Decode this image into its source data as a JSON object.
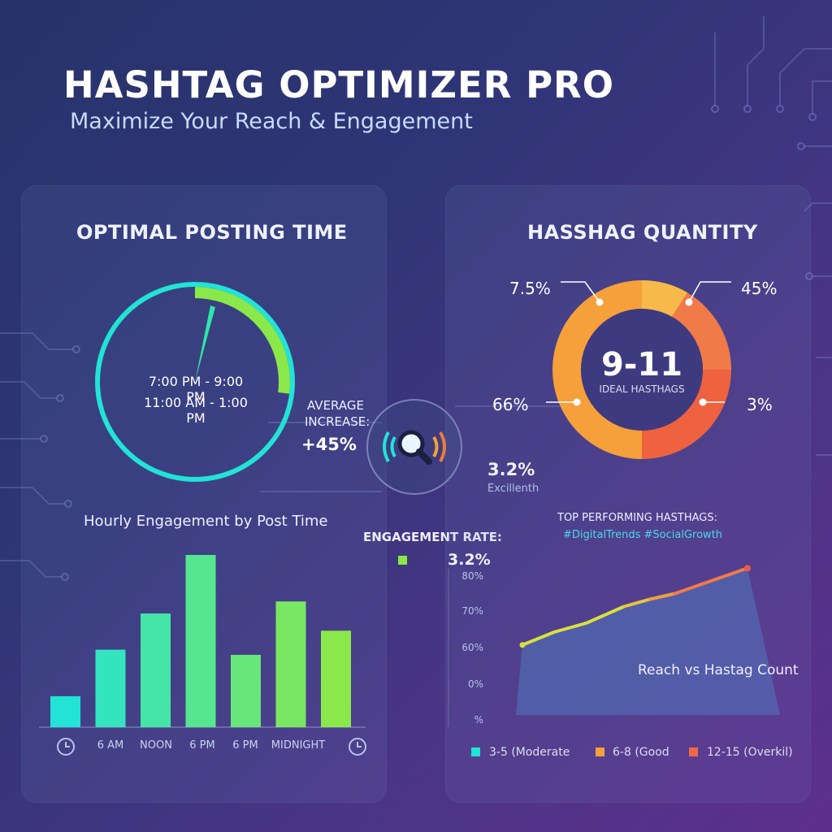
{
  "header": {
    "title": "HASHTAG OPTIMIZER PRO",
    "subtitle": "Maximize Your Reach & Engagement"
  },
  "colors": {
    "cyan": "#22e3d6",
    "green": "#8ae84a",
    "yellow": "#d8e040",
    "orange": "#f5a03a",
    "red_orange": "#ee6848",
    "navy_bg": "#2b3470",
    "purple_bg": "#5d2f8c"
  },
  "posting_time": {
    "title": "OPTIMAL POSTING TIME",
    "window_1": "7:00 PM - 9:00 PM",
    "window_2": "11:00 AM - 1:00 PM",
    "dial_fill_fraction": 0.27
  },
  "average_increase": {
    "label_line1": "AVERAGE",
    "label_line2": "INCREASE:",
    "value": "+45%"
  },
  "magnifier": {
    "icon": "magnifier-signal-icon",
    "value": "3.2%",
    "caption": "Excillenth"
  },
  "engagement_rate": {
    "label": "ENGAGEMENT RATE:",
    "value": "3.2%"
  },
  "hashtag_quantity": {
    "title": "HASSHAG QUANTITY",
    "center_value": "9-11",
    "center_label": "IDEAL HASTHAGS",
    "labels": [
      "7.5%",
      "45%",
      "66%",
      "3%"
    ]
  },
  "top_performing": {
    "label": "TOP PERFORMING HASTHAGS:",
    "tags": "#DigitalTrends #SocialGrowth"
  },
  "legend": [
    {
      "label": "3-5 (Moderate",
      "color": "#22e3d6"
    },
    {
      "label": "6-8 (Good",
      "color": "#f5a03a"
    },
    {
      "label": "12-15 (Overkil)",
      "color": "#ee6848"
    }
  ],
  "chart_data": [
    {
      "type": "bar",
      "title": "Hourly Engagement by Post Time",
      "x_tick_labels": [
        "6 AM",
        "NOON",
        "6 PM",
        "6 PM",
        "MIDNIGHT"
      ],
      "values": [
        18,
        45,
        66,
        100,
        42,
        73,
        56
      ],
      "value_scale": "relative, tallest bar = 100",
      "y_axis": "none shown"
    },
    {
      "type": "area",
      "title": "Reach vs Hastag Count",
      "y_tick_labels": [
        "80%",
        "70%",
        "60%",
        "0%",
        "%"
      ],
      "y_values": [
        60.5,
        64,
        66.5,
        71,
        73,
        74.5,
        81.5
      ],
      "y_unit": "%, read against the printed 60% / 70% / 80% gridlines",
      "x_axis": "no tick labels shown"
    }
  ]
}
